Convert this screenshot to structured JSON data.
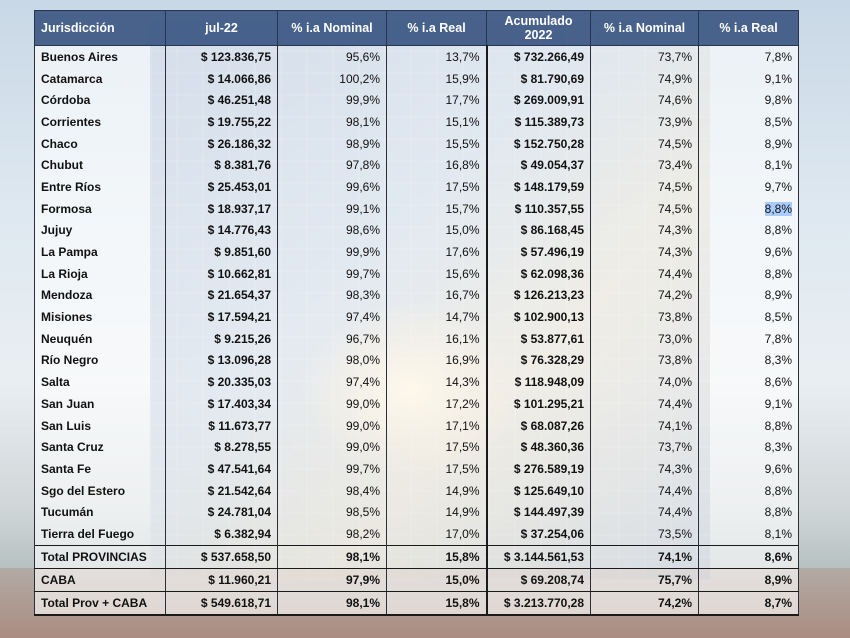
{
  "table": {
    "headers": [
      "Jurisdicción",
      "jul-22",
      "% i.a Nominal",
      "% i.a Real",
      "Acumulado\n2022",
      "% i.a Nominal",
      "% i.a Real"
    ],
    "header_accum_line1": "Acumulado",
    "header_accum_line2": "2022",
    "rows": [
      {
        "name": "Buenos Aires",
        "jul": "$ 123.836,75",
        "nom": "95,6%",
        "real": "13,7%",
        "acum": "$ 732.266,49",
        "nom_acum": "73,7%",
        "real_acum": "7,8%"
      },
      {
        "name": "Catamarca",
        "jul": "$ 14.066,86",
        "nom": "100,2%",
        "real": "15,9%",
        "acum": "$ 81.790,69",
        "nom_acum": "74,9%",
        "real_acum": "9,1%"
      },
      {
        "name": "Córdoba",
        "jul": "$ 46.251,48",
        "nom": "99,9%",
        "real": "17,7%",
        "acum": "$ 269.009,91",
        "nom_acum": "74,6%",
        "real_acum": "9,8%"
      },
      {
        "name": "Corrientes",
        "jul": "$ 19.755,22",
        "nom": "98,1%",
        "real": "15,1%",
        "acum": "$ 115.389,73",
        "nom_acum": "73,9%",
        "real_acum": "8,5%"
      },
      {
        "name": "Chaco",
        "jul": "$ 26.186,32",
        "nom": "98,9%",
        "real": "15,5%",
        "acum": "$ 152.750,28",
        "nom_acum": "74,5%",
        "real_acum": "8,9%"
      },
      {
        "name": "Chubut",
        "jul": "$ 8.381,76",
        "nom": "97,8%",
        "real": "16,8%",
        "acum": "$ 49.054,37",
        "nom_acum": "73,4%",
        "real_acum": "8,1%"
      },
      {
        "name": "Entre Ríos",
        "jul": "$ 25.453,01",
        "nom": "99,6%",
        "real": "17,5%",
        "acum": "$ 148.179,59",
        "nom_acum": "74,5%",
        "real_acum": "9,7%"
      },
      {
        "name": "Formosa",
        "jul": "$ 18.937,17",
        "nom": "99,1%",
        "real": "15,7%",
        "acum": "$ 110.357,55",
        "nom_acum": "74,5%",
        "real_acum": "8,8%"
      },
      {
        "name": "Jujuy",
        "jul": "$ 14.776,43",
        "nom": "98,6%",
        "real": "15,0%",
        "acum": "$ 86.168,45",
        "nom_acum": "74,3%",
        "real_acum": "8,8%"
      },
      {
        "name": "La Pampa",
        "jul": "$ 9.851,60",
        "nom": "99,9%",
        "real": "17,6%",
        "acum": "$ 57.496,19",
        "nom_acum": "74,3%",
        "real_acum": "9,6%"
      },
      {
        "name": "La Rioja",
        "jul": "$ 10.662,81",
        "nom": "99,7%",
        "real": "15,6%",
        "acum": "$ 62.098,36",
        "nom_acum": "74,4%",
        "real_acum": "8,8%"
      },
      {
        "name": "Mendoza",
        "jul": "$ 21.654,37",
        "nom": "98,3%",
        "real": "16,7%",
        "acum": "$ 126.213,23",
        "nom_acum": "74,2%",
        "real_acum": "8,9%"
      },
      {
        "name": "Misiones",
        "jul": "$ 17.594,21",
        "nom": "97,4%",
        "real": "14,7%",
        "acum": "$ 102.900,13",
        "nom_acum": "73,8%",
        "real_acum": "8,5%"
      },
      {
        "name": "Neuquén",
        "jul": "$ 9.215,26",
        "nom": "96,7%",
        "real": "16,1%",
        "acum": "$ 53.877,61",
        "nom_acum": "73,0%",
        "real_acum": "7,8%"
      },
      {
        "name": "Río Negro",
        "jul": "$ 13.096,28",
        "nom": "98,0%",
        "real": "16,9%",
        "acum": "$ 76.328,29",
        "nom_acum": "73,8%",
        "real_acum": "8,3%"
      },
      {
        "name": "Salta",
        "jul": "$ 20.335,03",
        "nom": "97,4%",
        "real": "14,3%",
        "acum": "$ 118.948,09",
        "nom_acum": "74,0%",
        "real_acum": "8,6%"
      },
      {
        "name": "San Juan",
        "jul": "$ 17.403,34",
        "nom": "99,0%",
        "real": "17,2%",
        "acum": "$ 101.295,21",
        "nom_acum": "74,4%",
        "real_acum": "9,1%"
      },
      {
        "name": "San Luis",
        "jul": "$ 11.673,77",
        "nom": "99,0%",
        "real": "17,1%",
        "acum": "$ 68.087,26",
        "nom_acum": "74,1%",
        "real_acum": "8,8%"
      },
      {
        "name": "Santa Cruz",
        "jul": "$ 8.278,55",
        "nom": "99,0%",
        "real": "17,5%",
        "acum": "$ 48.360,36",
        "nom_acum": "73,7%",
        "real_acum": "8,3%"
      },
      {
        "name": "Santa Fe",
        "jul": "$ 47.541,64",
        "nom": "99,7%",
        "real": "17,5%",
        "acum": "$ 276.589,19",
        "nom_acum": "74,3%",
        "real_acum": "9,6%"
      },
      {
        "name": "Sgo del Estero",
        "jul": "$ 21.542,64",
        "nom": "98,4%",
        "real": "14,9%",
        "acum": "$ 125.649,10",
        "nom_acum": "74,4%",
        "real_acum": "8,8%"
      },
      {
        "name": "Tucumán",
        "jul": "$ 24.781,04",
        "nom": "98,5%",
        "real": "14,9%",
        "acum": "$ 144.497,39",
        "nom_acum": "74,4%",
        "real_acum": "8,8%"
      },
      {
        "name": "Tierra del Fuego",
        "jul": "$ 6.382,94",
        "nom": "98,2%",
        "real": "17,0%",
        "acum": "$ 37.254,06",
        "nom_acum": "73,5%",
        "real_acum": "8,1%"
      }
    ],
    "totals": [
      {
        "name": "Total PROVINCIAS",
        "jul": "$ 537.658,50",
        "nom": "98,1%",
        "real": "15,8%",
        "acum": "$ 3.144.561,53",
        "nom_acum": "74,1%",
        "real_acum": "8,6%"
      },
      {
        "name": "CABA",
        "jul": "$ 11.960,21",
        "nom": "97,9%",
        "real": "15,0%",
        "acum": "$ 69.208,74",
        "nom_acum": "75,7%",
        "real_acum": "8,9%"
      },
      {
        "name": "Total Prov + CABA",
        "jul": "$ 549.618,71",
        "nom": "98,1%",
        "real": "15,8%",
        "acum": "$ 3.213.770,28",
        "nom_acum": "74,2%",
        "real_acum": "8,7%"
      }
    ]
  },
  "colors": {
    "header_bg": "#3a5682",
    "highlight": "#6eaaff"
  }
}
